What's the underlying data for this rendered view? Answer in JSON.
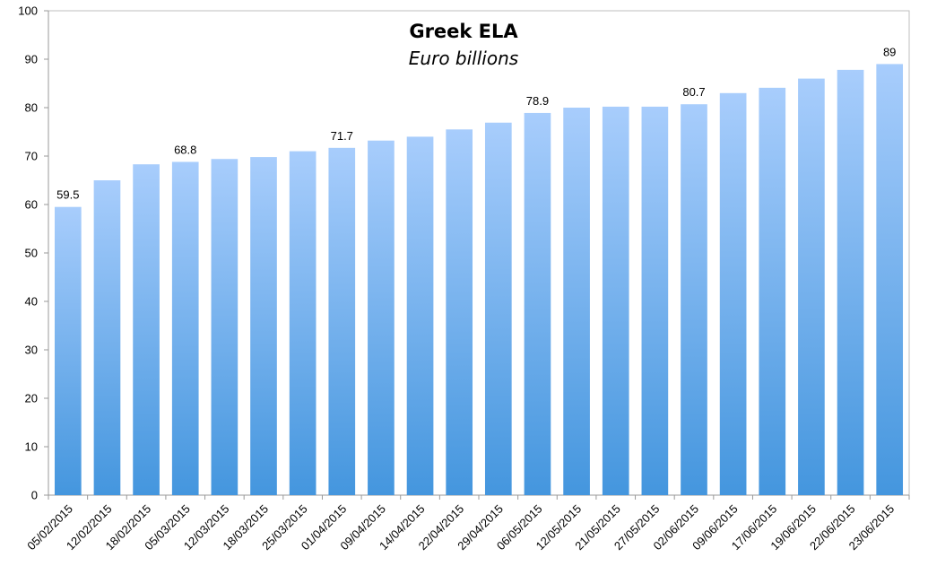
{
  "chart_data": {
    "type": "bar",
    "title": "Greek ELA",
    "subtitle": "Euro billions",
    "xlabel": "",
    "ylabel": "",
    "ylim": [
      0,
      100
    ],
    "yticks": [
      0,
      10,
      20,
      30,
      40,
      50,
      60,
      70,
      80,
      90,
      100
    ],
    "grid": false,
    "legend": "none",
    "categories": [
      "05/02/2015",
      "12/02/2015",
      "18/02/2015",
      "05/03/2015",
      "12/03/2015",
      "18/03/2015",
      "25/03/2015",
      "01/04/2015",
      "09/04/2015",
      "14/04/2015",
      "22/04/2015",
      "29/04/2015",
      "06/05/2015",
      "12/05/2015",
      "21/05/2015",
      "27/05/2015",
      "02/06/2015",
      "09/06/2015",
      "17/06/2015",
      "19/06/2015",
      "22/06/2015",
      "23/06/2015"
    ],
    "values": [
      59.5,
      65,
      68.3,
      68.8,
      69.4,
      69.8,
      71,
      71.7,
      73.2,
      74,
      75.5,
      76.9,
      78.9,
      80,
      80.2,
      80.2,
      80.7,
      83,
      84.1,
      86,
      87.8,
      89
    ],
    "data_labels": {
      "0": "59.5",
      "3": "68.8",
      "7": "71.7",
      "12": "78.9",
      "16": "80.7",
      "21": "89"
    },
    "colors": {
      "bar_top": "#a8cdfc",
      "bar_bottom": "#4496de",
      "axis": "#999999",
      "text": "#000000"
    }
  }
}
